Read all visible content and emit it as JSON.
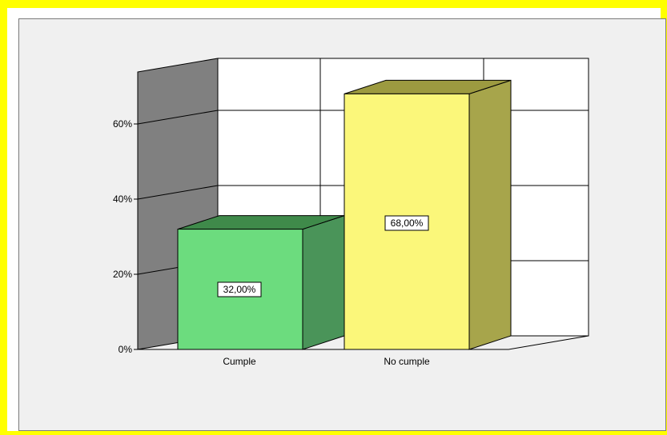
{
  "chart_data": {
    "type": "bar",
    "style": "3d",
    "categories": [
      "Cumple",
      "No cumple"
    ],
    "values": [
      32.0,
      68.0
    ],
    "data_labels": [
      "32,00%",
      "68,00%"
    ],
    "y_ticks": [
      0,
      20,
      40,
      60
    ],
    "y_tick_labels": [
      "0%",
      "20%",
      "40%",
      "60%"
    ],
    "ylim": [
      0,
      73
    ],
    "grid": true,
    "colors": {
      "frame": "#ffff00",
      "plot_background": "#f0f0f0",
      "back_wall": "#ffffff",
      "side_wall": "#808080",
      "bars": [
        {
          "front": "#6cdc7e",
          "side": "#4a9459",
          "top": "#3f8a4a"
        },
        {
          "front": "#fbf77a",
          "side": "#a7a54b",
          "top": "#9c9a40"
        }
      ]
    }
  }
}
